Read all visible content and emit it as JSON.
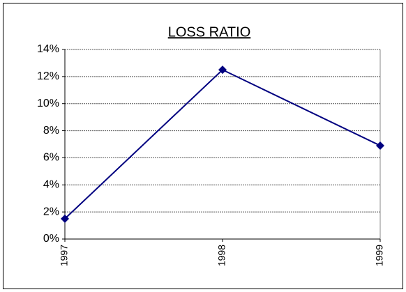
{
  "chart_data": {
    "type": "line",
    "title": "LOSS RATIO",
    "categories": [
      "1997",
      "1998",
      "1999"
    ],
    "series": [
      {
        "name": "LOSS RATIO",
        "color": "#000080",
        "values": [
          1.5,
          12.5,
          6.9
        ]
      }
    ],
    "ylim": [
      0,
      14
    ],
    "yticks": [
      {
        "value": 0,
        "label": "0%"
      },
      {
        "value": 2,
        "label": "2%"
      },
      {
        "value": 4,
        "label": "4%"
      },
      {
        "value": 6,
        "label": "6%"
      },
      {
        "value": 8,
        "label": "8%"
      },
      {
        "value": 10,
        "label": "10%"
      },
      {
        "value": 12,
        "label": "12%"
      },
      {
        "value": 14,
        "label": "14%"
      }
    ],
    "grid": true
  }
}
